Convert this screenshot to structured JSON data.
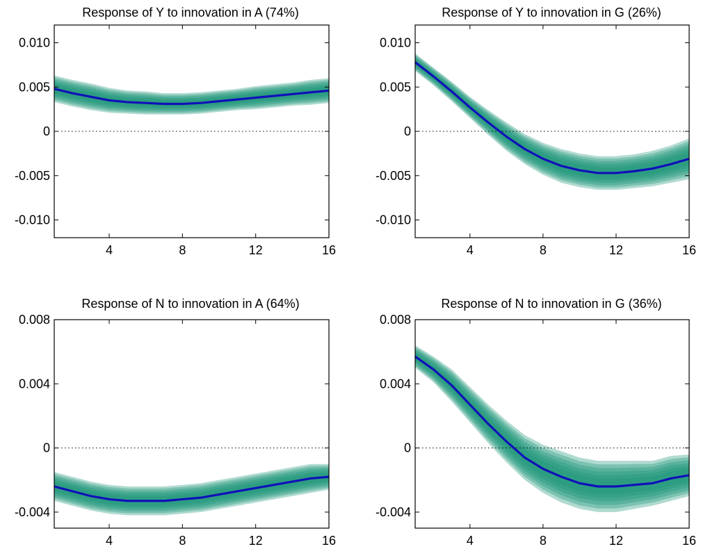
{
  "chart_data": [
    {
      "type": "line",
      "title": "Response of Y to innovation in A (74%)",
      "xlabel": "",
      "ylabel": "",
      "xlim": [
        1,
        16
      ],
      "ylim": [
        -0.012,
        0.012
      ],
      "xticks": [
        4,
        8,
        12,
        16
      ],
      "xtick_labels": [
        "4",
        "8",
        "12",
        "16"
      ],
      "yticks": [
        0.01,
        0.005,
        0,
        -0.005,
        -0.01
      ],
      "ytick_labels": [
        "0.010",
        "0.005",
        "0",
        "-0.005",
        "-0.010"
      ],
      "x": [
        1,
        2,
        3,
        4,
        5,
        6,
        7,
        8,
        9,
        10,
        11,
        12,
        13,
        14,
        15,
        16
      ],
      "median": [
        0.0048,
        0.0043,
        0.0039,
        0.0035,
        0.0033,
        0.0032,
        0.0031,
        0.0031,
        0.0032,
        0.0034,
        0.0036,
        0.0038,
        0.004,
        0.0042,
        0.0044,
        0.0046
      ],
      "band_halfwidths_outer": [
        0.0015,
        0.0015,
        0.0015,
        0.0014,
        0.0013,
        0.0013,
        0.0012,
        0.0012,
        0.0012,
        0.0012,
        0.0012,
        0.0013,
        0.0013,
        0.0013,
        0.0014,
        0.0014
      ],
      "zero_line": true,
      "colors": {
        "median": "#1010b8",
        "band": "#1e9478"
      }
    },
    {
      "type": "line",
      "title": "Response of Y to innovation in G (26%)",
      "xlabel": "",
      "ylabel": "",
      "xlim": [
        1,
        16
      ],
      "ylim": [
        -0.012,
        0.012
      ],
      "xticks": [
        4,
        8,
        12,
        16
      ],
      "xtick_labels": [
        "4",
        "8",
        "12",
        "16"
      ],
      "yticks": [
        0.01,
        0.005,
        0,
        -0.005,
        -0.01
      ],
      "ytick_labels": [
        "0.010",
        "0.005",
        "0",
        "-0.005",
        "-0.010"
      ],
      "x": [
        1,
        2,
        3,
        4,
        5,
        6,
        7,
        8,
        9,
        10,
        11,
        12,
        13,
        14,
        15,
        16
      ],
      "median": [
        0.0078,
        0.0062,
        0.0045,
        0.0027,
        0.001,
        -0.0006,
        -0.002,
        -0.0031,
        -0.0039,
        -0.0044,
        -0.0047,
        -0.0047,
        -0.0045,
        -0.0042,
        -0.0037,
        -0.0031
      ],
      "band_halfwidths_outer": [
        0.001,
        0.001,
        0.0011,
        0.0012,
        0.0014,
        0.0016,
        0.0017,
        0.0018,
        0.0019,
        0.0019,
        0.0019,
        0.0019,
        0.0019,
        0.002,
        0.0021,
        0.0023
      ],
      "zero_line": true,
      "colors": {
        "median": "#1010b8",
        "band": "#1e9478"
      }
    },
    {
      "type": "line",
      "title": "Response of N to innovation in A (64%)",
      "xlabel": "",
      "ylabel": "",
      "xlim": [
        1,
        16
      ],
      "ylim": [
        -0.005,
        0.008
      ],
      "xticks": [
        4,
        8,
        12,
        16
      ],
      "xtick_labels": [
        "4",
        "8",
        "12",
        "16"
      ],
      "yticks": [
        0.008,
        0.004,
        0,
        -0.004
      ],
      "ytick_labels": [
        "0.008",
        "0.004",
        "0",
        "-0.004"
      ],
      "x": [
        1,
        2,
        3,
        4,
        5,
        6,
        7,
        8,
        9,
        10,
        11,
        12,
        13,
        14,
        15,
        16
      ],
      "median": [
        -0.0024,
        -0.0027,
        -0.003,
        -0.0032,
        -0.0033,
        -0.0033,
        -0.0033,
        -0.0032,
        -0.0031,
        -0.0029,
        -0.0027,
        -0.0025,
        -0.0023,
        -0.0021,
        -0.0019,
        -0.0018
      ],
      "band_halfwidths_outer": [
        0.0009,
        0.0009,
        0.0009,
        0.0009,
        0.0009,
        0.0009,
        0.0009,
        0.0009,
        0.0009,
        0.0009,
        0.0009,
        0.0009,
        0.0009,
        0.0009,
        0.0009,
        0.0008
      ],
      "zero_line": true,
      "colors": {
        "median": "#1010b8",
        "band": "#1e9478"
      }
    },
    {
      "type": "line",
      "title": "Response of N to innovation in G (36%)",
      "xlabel": "",
      "ylabel": "",
      "xlim": [
        1,
        16
      ],
      "ylim": [
        -0.005,
        0.008
      ],
      "xticks": [
        4,
        8,
        12,
        16
      ],
      "xtick_labels": [
        "4",
        "8",
        "12",
        "16"
      ],
      "yticks": [
        0.008,
        0.004,
        0,
        -0.004
      ],
      "ytick_labels": [
        "0.008",
        "0.004",
        "0",
        "-0.004"
      ],
      "x": [
        1,
        2,
        3,
        4,
        5,
        6,
        7,
        8,
        9,
        10,
        11,
        12,
        13,
        14,
        15,
        16
      ],
      "median": [
        0.0057,
        0.0049,
        0.0039,
        0.0027,
        0.0015,
        0.0004,
        -0.0006,
        -0.0013,
        -0.0018,
        -0.0022,
        -0.0024,
        -0.0024,
        -0.0023,
        -0.0022,
        -0.0019,
        -0.0017
      ],
      "band_halfwidths_outer": [
        0.0007,
        0.0008,
        0.001,
        0.0011,
        0.0012,
        0.0013,
        0.0014,
        0.0015,
        0.0016,
        0.0016,
        0.0016,
        0.0016,
        0.0015,
        0.0014,
        0.0014,
        0.0013
      ],
      "zero_line": true,
      "colors": {
        "median": "#1010b8",
        "band": "#1e9478"
      }
    }
  ]
}
